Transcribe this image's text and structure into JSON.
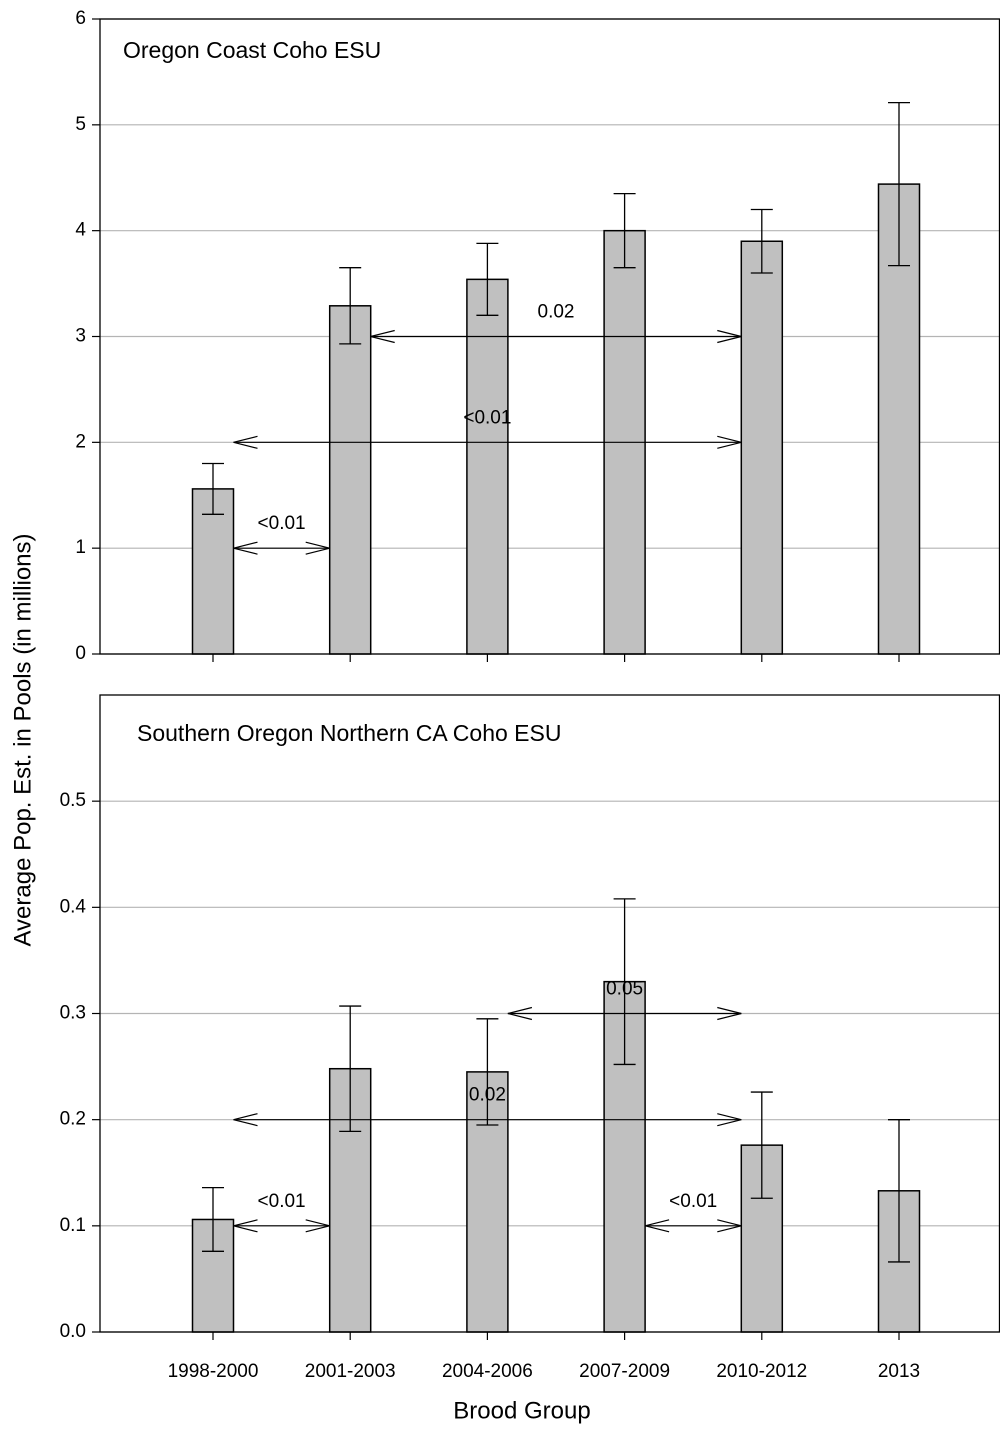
{
  "chart_data": [
    {
      "type": "bar",
      "title": "Oregon Coast Coho ESU",
      "ylabel": "Average Pop. Est. in Pools (in millions)",
      "categories": [
        null,
        null,
        null,
        null,
        null,
        null
      ],
      "values": [
        1.56,
        3.29,
        3.54,
        4.0,
        3.9,
        4.44
      ],
      "errors": [
        0.24,
        0.36,
        0.34,
        0.35,
        0.3,
        0.77
      ],
      "color": "#c0c0c0",
      "ylim": [
        0,
        6
      ],
      "yticks": [
        0,
        1,
        2,
        3,
        4,
        5,
        6
      ],
      "grid": true,
      "annotations": [
        {
          "text": "<0.01",
          "y": 1,
          "from": "1998-2000",
          "to": "2001-2003"
        },
        {
          "text": "0.02",
          "y": 3,
          "from": "2001-2003",
          "to": "2010-2012"
        },
        {
          "text": "<0.01",
          "y": 2,
          "from": "1998-2000",
          "to": "2010-2012"
        }
      ]
    },
    {
      "type": "bar",
      "title": "Southern Oregon Northern CA Coho ESU",
      "xlabel": "Brood Group",
      "categories": [
        "1998-2000",
        "2001-2003",
        "2004-2006",
        "2007-2009",
        "2010-2012",
        "2013"
      ],
      "values": [
        0.106,
        0.248,
        0.245,
        0.33,
        0.176,
        0.133
      ],
      "errors": [
        0.03,
        0.059,
        0.05,
        0.078,
        0.05,
        0.067
      ],
      "color": "#c0c0c0",
      "ylim": [
        0,
        0.6
      ],
      "yticks": [
        {
          "value": 0,
          "label": "0.0"
        },
        0.1,
        0.2,
        0.3,
        0.4,
        0.5
      ],
      "grid": true,
      "annotations": [
        {
          "text": "<0.01",
          "y": 0.1,
          "from": "1998-2000",
          "to": "2001-2003"
        },
        {
          "text": "0.05",
          "y": 0.3,
          "from": "2004-2006",
          "to": "2010-2012"
        },
        {
          "text": "0.02",
          "y": 0.2,
          "from": "1998-2000",
          "to": "2010-2012"
        },
        {
          "text": "<0.01",
          "y": 0.1,
          "from": "2007-2009",
          "to": "2010-2012"
        }
      ]
    }
  ]
}
